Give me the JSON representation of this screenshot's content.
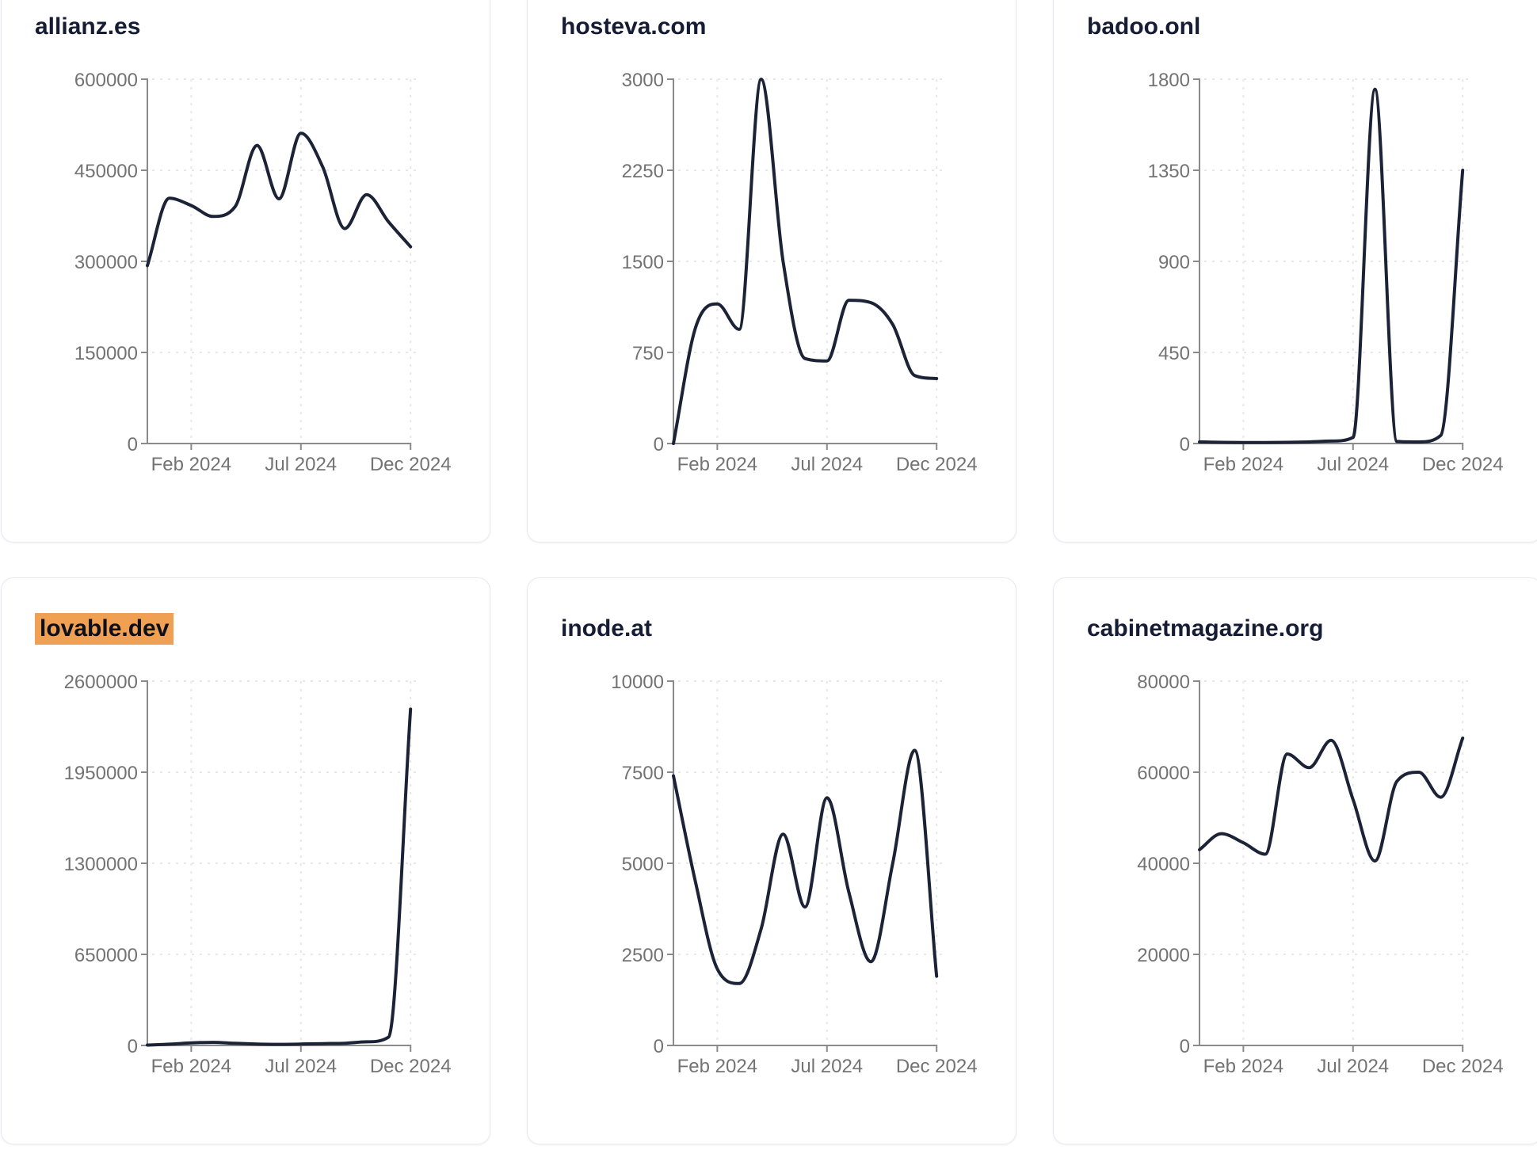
{
  "page": {
    "background": "#ffffff",
    "description": "Dashboard grid of six domain traffic trend line charts"
  },
  "colors": {
    "line": "#1c2337",
    "axis": "#8a8a8a",
    "grid": "#e7e7e7",
    "tick_label": "#737373",
    "title": "#151c33",
    "highlight_bg": "#efa053",
    "highlight_text": "#0c0f1c",
    "card_border": "#e7eaf2"
  },
  "x_axis": {
    "tick_labels": [
      "Feb 2024",
      "Jul 2024",
      "Dec 2024"
    ],
    "tick_month_indices": [
      2,
      7,
      12
    ]
  },
  "chart_data": [
    {
      "type": "line",
      "title": "allianz.es",
      "highlighted": false,
      "x": [
        "Dec 2023",
        "Jan 2024",
        "Feb 2024",
        "Mar 2024",
        "Apr 2024",
        "May 2024",
        "Jun 2024",
        "Jul 2024",
        "Aug 2024",
        "Sep 2024",
        "Oct 2024",
        "Nov 2024",
        "Dec 2024"
      ],
      "values": [
        293000,
        404000,
        392000,
        374000,
        390000,
        491000,
        403000,
        511000,
        455000,
        354000,
        410000,
        365000,
        324000
      ],
      "y_ticks": [
        0,
        150000,
        300000,
        450000,
        600000
      ],
      "ylim": [
        0,
        600000
      ],
      "xlabel": "",
      "ylabel": "",
      "grid": "dashed",
      "legend": "none"
    },
    {
      "type": "line",
      "title": "hosteva.com",
      "highlighted": false,
      "x": [
        "Dec 2023",
        "Jan 2024",
        "Feb 2024",
        "Mar 2024",
        "Apr 2024",
        "May 2024",
        "Jun 2024",
        "Jul 2024",
        "Aug 2024",
        "Sep 2024",
        "Oct 2024",
        "Nov 2024",
        "Dec 2024"
      ],
      "values": [
        0,
        950,
        1150,
        940,
        3000,
        1500,
        700,
        680,
        1180,
        1160,
        980,
        560,
        535
      ],
      "y_ticks": [
        0,
        750,
        1500,
        2250,
        3000
      ],
      "ylim": [
        0,
        3000
      ],
      "xlabel": "",
      "ylabel": "",
      "grid": "dashed",
      "legend": "none"
    },
    {
      "type": "line",
      "title": "badoo.onl",
      "highlighted": false,
      "x": [
        "Dec 2023",
        "Jan 2024",
        "Feb 2024",
        "Mar 2024",
        "Apr 2024",
        "May 2024",
        "Jun 2024",
        "Jul 2024",
        "Aug 2024",
        "Sep 2024",
        "Oct 2024",
        "Nov 2024",
        "Dec 2024"
      ],
      "values": [
        8,
        6,
        5,
        5,
        6,
        8,
        12,
        30,
        1750,
        10,
        8,
        40,
        1350
      ],
      "y_ticks": [
        0,
        450,
        900,
        1350,
        1800
      ],
      "ylim": [
        0,
        1800
      ],
      "xlabel": "",
      "ylabel": "",
      "grid": "dashed",
      "legend": "none"
    },
    {
      "type": "line",
      "title": "lovable.dev",
      "highlighted": true,
      "x": [
        "Dec 2023",
        "Jan 2024",
        "Feb 2024",
        "Mar 2024",
        "Apr 2024",
        "May 2024",
        "Jun 2024",
        "Jul 2024",
        "Aug 2024",
        "Sep 2024",
        "Oct 2024",
        "Nov 2024",
        "Dec 2024"
      ],
      "values": [
        3000,
        9000,
        18000,
        22000,
        15000,
        10000,
        8000,
        10000,
        13000,
        16000,
        26000,
        60000,
        2400000
      ],
      "y_ticks": [
        0,
        650000,
        1300000,
        1950000,
        2600000
      ],
      "ylim": [
        0,
        2600000
      ],
      "xlabel": "",
      "ylabel": "",
      "grid": "dashed",
      "legend": "none"
    },
    {
      "type": "line",
      "title": "inode.at",
      "highlighted": false,
      "x": [
        "Dec 2023",
        "Jan 2024",
        "Feb 2024",
        "Mar 2024",
        "Apr 2024",
        "May 2024",
        "Jun 2024",
        "Jul 2024",
        "Aug 2024",
        "Sep 2024",
        "Oct 2024",
        "Nov 2024",
        "Dec 2024"
      ],
      "values": [
        7400,
        4500,
        2100,
        1700,
        3200,
        5800,
        3800,
        6800,
        4200,
        2300,
        5000,
        8100,
        1900
      ],
      "y_ticks": [
        0,
        2500,
        5000,
        7500,
        10000
      ],
      "ylim": [
        0,
        10000
      ],
      "xlabel": "",
      "ylabel": "",
      "grid": "dashed",
      "legend": "none"
    },
    {
      "type": "line",
      "title": "cabinetmagazine.org",
      "highlighted": false,
      "x": [
        "Dec 2023",
        "Jan 2024",
        "Feb 2024",
        "Mar 2024",
        "Apr 2024",
        "May 2024",
        "Jun 2024",
        "Jul 2024",
        "Aug 2024",
        "Sep 2024",
        "Oct 2024",
        "Nov 2024",
        "Dec 2024"
      ],
      "values": [
        43000,
        46500,
        44500,
        42000,
        64000,
        61000,
        67000,
        54000,
        40500,
        58000,
        60000,
        54500,
        67500
      ],
      "y_ticks": [
        0,
        20000,
        40000,
        60000,
        80000
      ],
      "ylim": [
        0,
        80000
      ],
      "xlabel": "",
      "ylabel": "",
      "grid": "dashed",
      "legend": "none"
    }
  ]
}
